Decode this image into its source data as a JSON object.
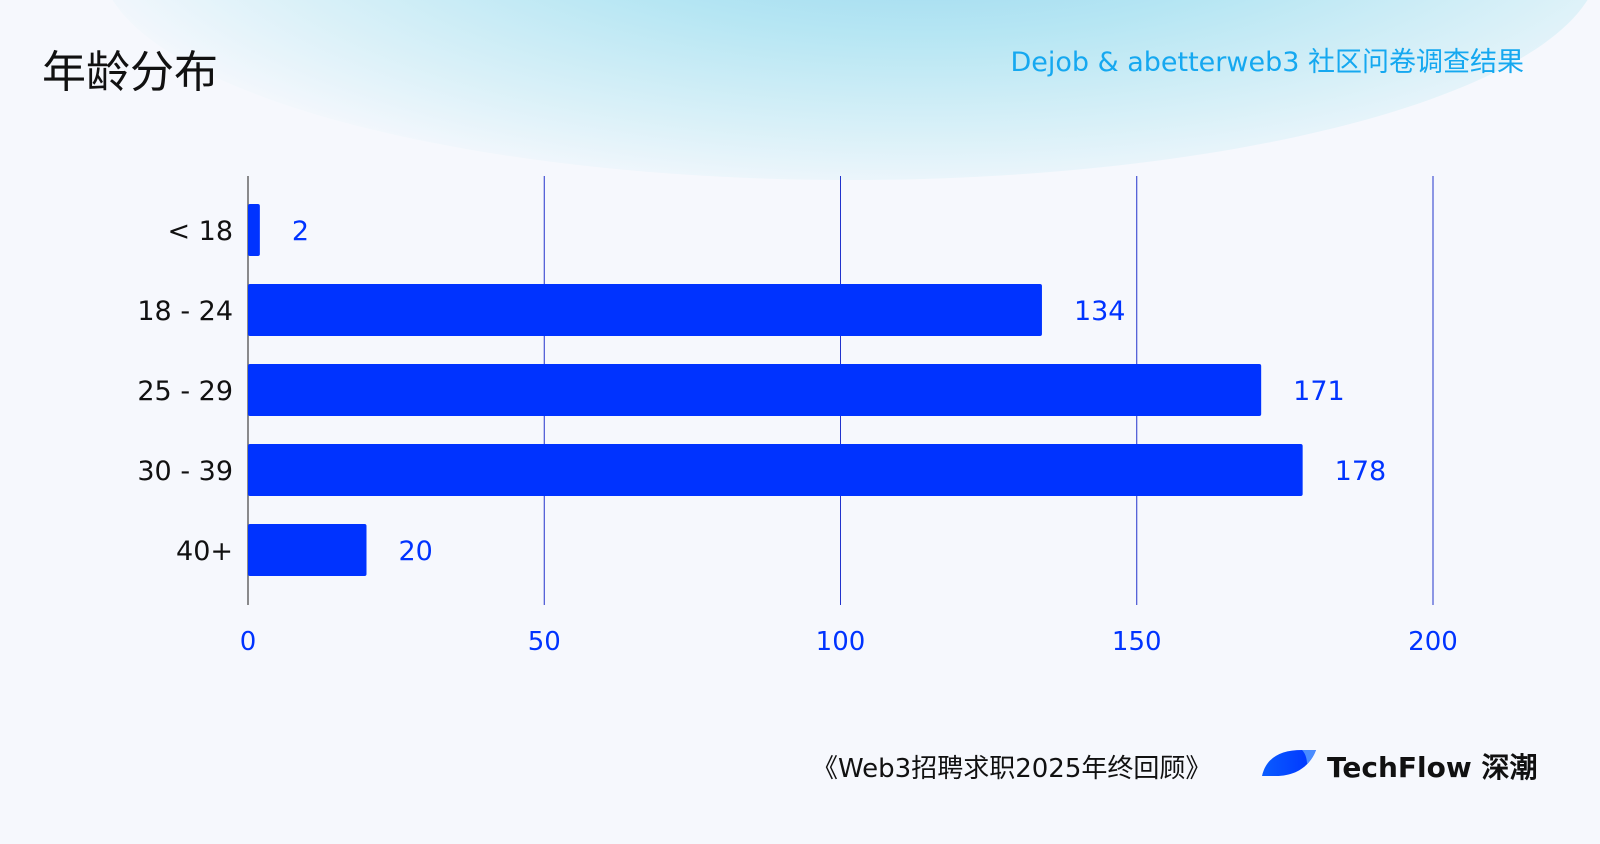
{
  "header": {
    "title": "年龄分布",
    "subtitle": "Dejob & abetterweb3 社区问卷调查结果"
  },
  "footer": {
    "note": "《Web3招聘求职2025年终回顾》",
    "brand": "TechFlow 深潮"
  },
  "colors": {
    "bar": "#0033ff",
    "label": "#0033ff",
    "grid": "#2233cc",
    "subtitle": "#15a8f0"
  },
  "chart_data": {
    "type": "bar",
    "orientation": "horizontal",
    "title": "年龄分布",
    "categories": [
      "< 18",
      "18 - 24",
      "25 - 29",
      "30 - 39",
      "40+"
    ],
    "values": [
      2,
      134,
      171,
      178,
      20
    ],
    "xlim": [
      0,
      200
    ],
    "xticks": [
      0,
      50,
      100,
      150,
      200
    ],
    "grid": true,
    "data_labels": true
  }
}
